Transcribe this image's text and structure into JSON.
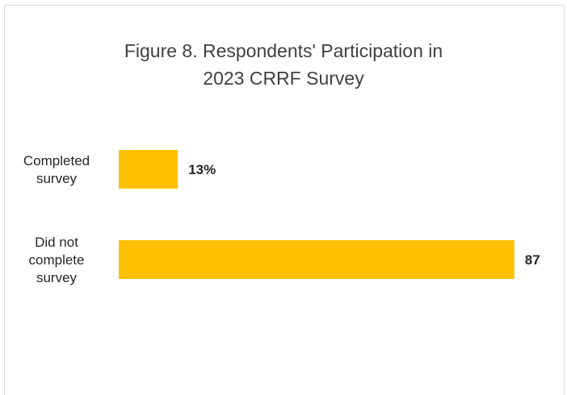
{
  "chart_data": {
    "type": "bar",
    "orientation": "horizontal",
    "title_lines": [
      "Figure 8. Respondents' Participation in",
      "2023 CRRF Survey"
    ],
    "categories": [
      [
        "Completed",
        "survey"
      ],
      [
        "Did not",
        "complete",
        "survey"
      ]
    ],
    "values": [
      13,
      87
    ],
    "data_labels": [
      "13%",
      "87"
    ],
    "xlim": [
      0,
      100
    ],
    "grid": false,
    "legend": "none",
    "bar_color": "#ffc000"
  }
}
